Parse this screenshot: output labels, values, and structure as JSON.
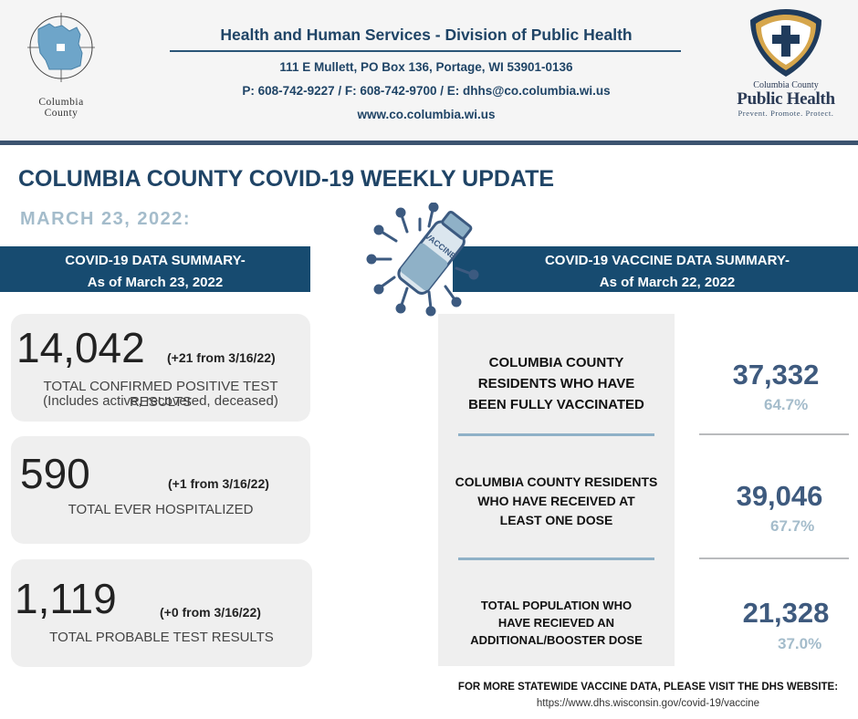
{
  "header": {
    "county_logo_text": "Columbia County",
    "county_line1": "Columbia",
    "county_line2": "County",
    "department_title": "Health and Human Services - Division of Public Health",
    "address": "111 E Mullett, PO Box 136, Portage, WI  53901-0136",
    "contact": "P: 608-742-9227 / F: 608-742-9700 / E: dhhs@co.columbia.wi.us",
    "website": "www.co.columbia.wi.us",
    "ph_logo_county": "Columbia County",
    "ph_logo_name": "Public Health",
    "ph_logo_tagline": "Prevent. Promote. Protect."
  },
  "title": "COLUMBIA COUNTY COVID-19 WEEKLY UPDATE",
  "date": "MARCH 23, 2022:",
  "left_banner": {
    "line1": "COVID-19 DATA SUMMARY-",
    "line2": "As of March 23, 2022"
  },
  "right_banner": {
    "line1": "COVID-19 VACCINE DATA SUMMARY-",
    "line2": "As of March 22, 2022"
  },
  "vaccine_icon_text": "VACCINE",
  "cards": [
    {
      "value": "14,042",
      "change": "(+21 from 3/16/22)",
      "label": "TOTAL CONFIRMED POSITIVE TEST RESULTS",
      "sublabel": "(Includes active, recovered, deceased)"
    },
    {
      "value": "590",
      "change": "(+1 from 3/16/22)",
      "label": "TOTAL EVER HOSPITALIZED"
    },
    {
      "value": "1,119",
      "change": "(+0 from 3/16/22)",
      "label": "TOTAL PROBABLE TEST RESULTS"
    }
  ],
  "vaccine_stats": [
    {
      "label_lines": [
        "COLUMBIA COUNTY",
        "RESIDENTS WHO HAVE",
        "BEEN FULLY VACCINATED"
      ],
      "value": "37,332",
      "percent": "64.7%"
    },
    {
      "label_lines": [
        "COLUMBIA COUNTY RESIDENTS",
        "WHO HAVE RECEIVED AT",
        "LEAST ONE DOSE"
      ],
      "value": "39,046",
      "percent": "67.7%"
    },
    {
      "label_lines": [
        "TOTAL POPULATION WHO",
        "HAVE RECIEVED AN",
        "ADDITIONAL/BOOSTER DOSE"
      ],
      "value": "21,328",
      "percent": "37.0%"
    }
  ],
  "footer": {
    "note": "FOR MORE STATEWIDE VACCINE DATA, PLEASE VISIT THE DHS WEBSITE:",
    "url": "https://www.dhs.wisconsin.gov/covid-19/vaccine"
  }
}
